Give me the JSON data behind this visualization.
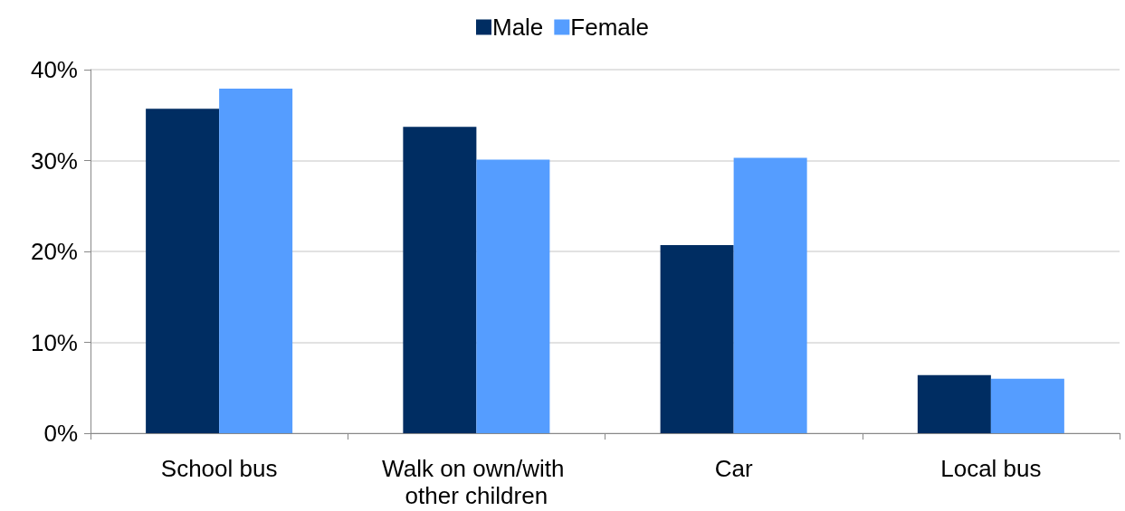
{
  "chart_data": {
    "type": "bar",
    "categories": [
      "School bus",
      "Walk on own/with other children",
      "Car",
      "Local bus"
    ],
    "series": [
      {
        "name": "Male",
        "color": "#002d62",
        "values": [
          35.7,
          33.7,
          20.7,
          6.4
        ]
      },
      {
        "name": "Female",
        "color": "#559dff",
        "values": [
          37.9,
          30.1,
          30.3,
          6.0
        ]
      }
    ],
    "ylim": [
      0,
      40
    ],
    "yticks": [
      {
        "value": 0,
        "label": "0%"
      },
      {
        "value": 10,
        "label": "10%"
      },
      {
        "value": 20,
        "label": "20%"
      },
      {
        "value": 30,
        "label": "30%"
      },
      {
        "value": 40,
        "label": "40%"
      }
    ],
    "grid": "y",
    "legend": "top"
  }
}
